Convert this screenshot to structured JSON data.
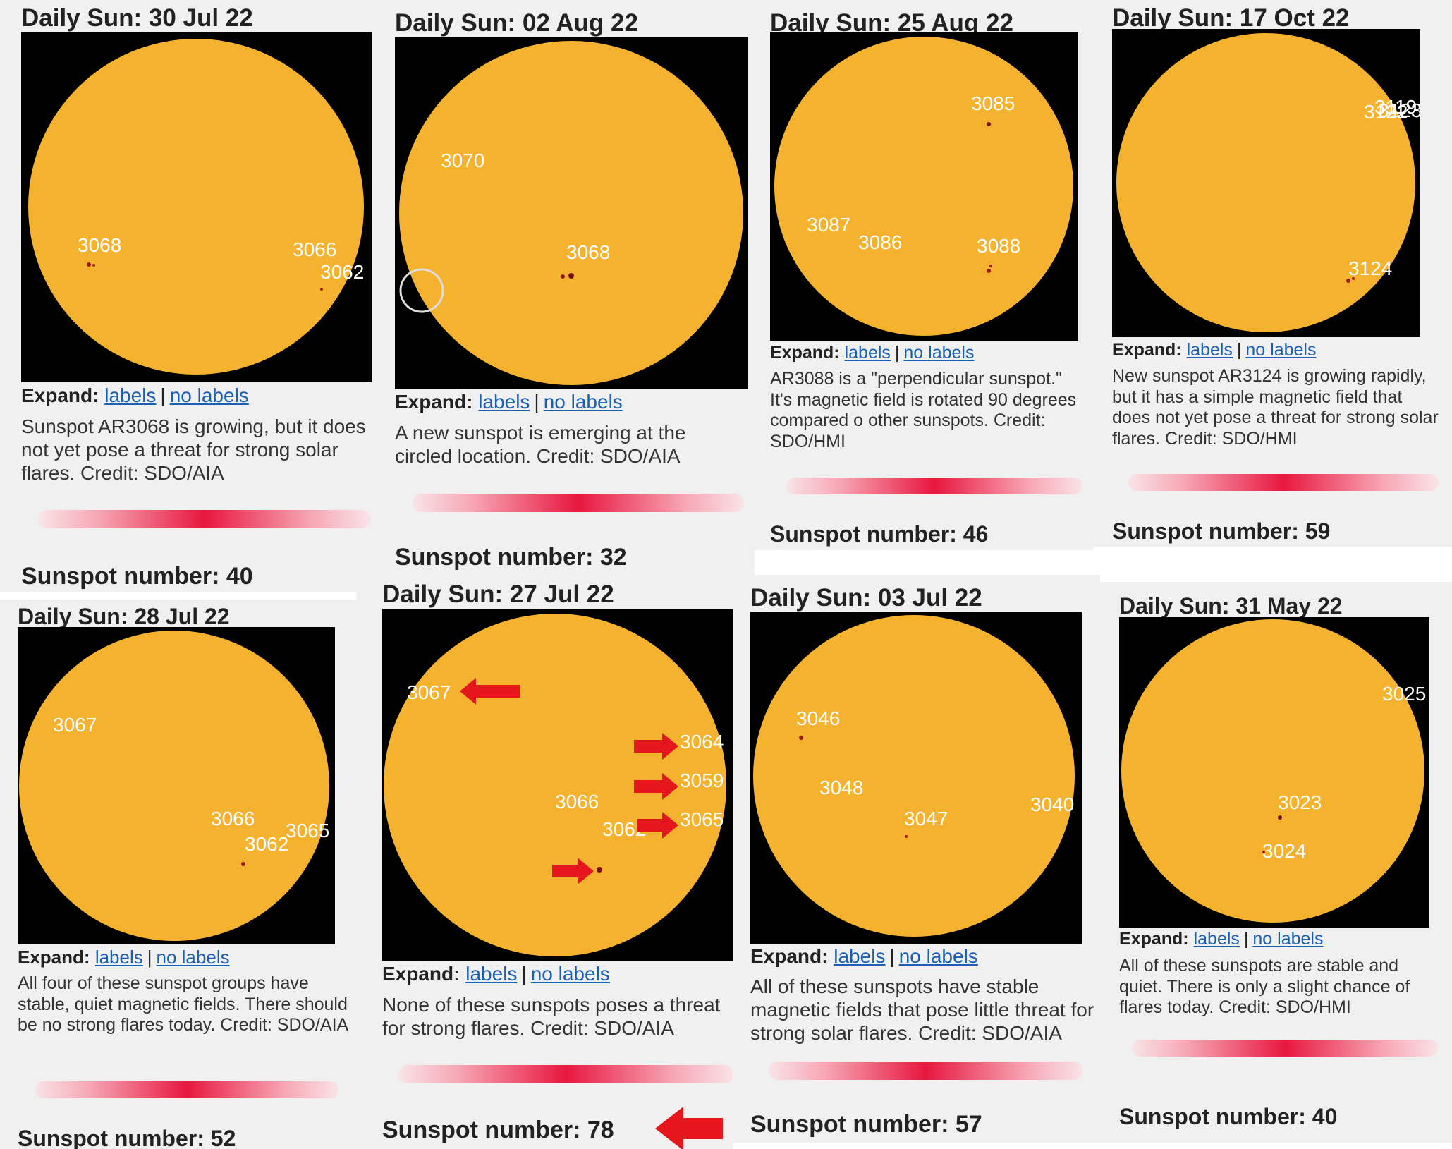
{
  "panels": [
    {
      "title": "Daily Sun: 30 Jul 22",
      "labels": [
        "3068",
        "3066",
        "3062"
      ],
      "expand": {
        "prefix": "Expand:",
        "labels": "labels",
        "sep": "|",
        "no_labels": "no labels"
      },
      "caption": "Sunspot AR3068 is growing, but it does not yet pose a threat for strong solar flares. Credit: SDO/AIA",
      "sunspot_number": "Sunspot number: 40"
    },
    {
      "title": "Daily Sun: 02 Aug 22",
      "labels": [
        "3070",
        "3068"
      ],
      "expand": {
        "prefix": "Expand:",
        "labels": "labels",
        "sep": "|",
        "no_labels": "no labels"
      },
      "caption": "A new sunspot is emerging at the circled location. Credit: SDO/AIA",
      "sunspot_number": "Sunspot number: 32"
    },
    {
      "title": "Daily Sun: 25 Aug 22",
      "labels": [
        "3085",
        "3087",
        "3086",
        "3088"
      ],
      "expand": {
        "prefix": "Expand:",
        "labels": "labels",
        "sep": "|",
        "no_labels": "no labels"
      },
      "caption": "AR3088 is a \"perpendicular sunspot.\" It's magnetic field is rotated 90 degrees compared o other sunspots. Credit: SDO/HMI",
      "sunspot_number": "Sunspot number: 46"
    },
    {
      "title": "Daily Sun: 17 Oct 22",
      "labels": [
        "3119",
        "3122",
        "3123",
        "3124"
      ],
      "expand": {
        "prefix": "Expand:",
        "labels": "labels",
        "sep": "|",
        "no_labels": "no labels"
      },
      "caption": "New sunspot AR3124 is growing rapidly, but it has a simple magnetic field that does not yet pose a threat for strong solar flares. Credit: SDO/HMI",
      "sunspot_number": "Sunspot number: 59"
    },
    {
      "title": "Daily Sun: 28 Jul 22",
      "labels": [
        "3067",
        "3066",
        "3062",
        "3065"
      ],
      "expand": {
        "prefix": "Expand:",
        "labels": "labels",
        "sep": "|",
        "no_labels": "no labels"
      },
      "caption": "All four of these sunspot groups have stable, quiet magnetic fields. There should be no strong flares today. Credit: SDO/AIA",
      "sunspot_number": "Sunspot number: 52"
    },
    {
      "title": "Daily Sun: 27 Jul 22",
      "labels": [
        "3067",
        "3064",
        "3059",
        "3066",
        "3065",
        "3062"
      ],
      "expand": {
        "prefix": "Expand:",
        "labels": "labels",
        "sep": "|",
        "no_labels": "no labels"
      },
      "caption": "None of these sunspots poses a threat for strong flares. Credit: SDO/AIA",
      "sunspot_number": "Sunspot number: 78"
    },
    {
      "title": "Daily Sun: 03 Jul 22",
      "labels": [
        "3046",
        "3048",
        "3047",
        "3040"
      ],
      "expand": {
        "prefix": "Expand:",
        "labels": "labels",
        "sep": "|",
        "no_labels": "no labels"
      },
      "caption": "All of these sunspots have stable magnetic fields that pose little threat for strong solar flares. Credit: SDO/AIA",
      "sunspot_number": "Sunspot number: 57"
    },
    {
      "title": "Daily Sun: 31 May 22",
      "labels": [
        "3025",
        "3023",
        "3024"
      ],
      "expand": {
        "prefix": "Expand:",
        "labels": "labels",
        "sep": "|",
        "no_labels": "no labels"
      },
      "caption": "All of these sunspots are stable and quiet. There is only a slight chance of flares today. Credit: SDO/HMI",
      "sunspot_number": "Sunspot number: 40"
    }
  ],
  "colors": {
    "sun": "#f5b22e",
    "sky": "#000000",
    "link": "#1a5fb4",
    "arrow": "#e5161c",
    "bar": "#e8173f"
  },
  "icons": [
    "red-arrow-icon",
    "circle-marker-icon"
  ]
}
